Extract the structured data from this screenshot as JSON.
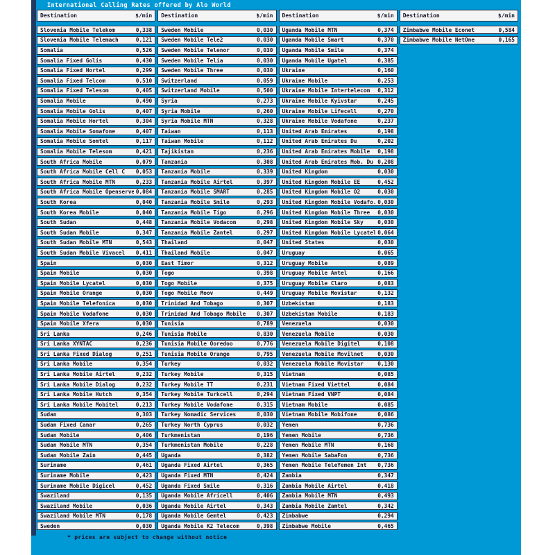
{
  "title": "International Calling Rates offered by Alo World",
  "footer_note": "* prices are subject to change without notice",
  "colors": {
    "panel_background": "#0099D6",
    "accent_bar": "#1F3A63",
    "cell_background": "#F4F4F4",
    "cell_border": "#2A2A3F",
    "text": "#14142C",
    "title_text": "#FFFFFF"
  },
  "table": {
    "header": {
      "destination": "Destination",
      "rate": "$/min"
    },
    "columns": [
      {
        "rows": [
          [
            "Slovenia Mobile Telekom",
            "0,338"
          ],
          [
            "Slovenia Mobile Telemach",
            "0,121"
          ],
          [
            "Somalia",
            "0,526"
          ],
          [
            "Somalia Fixed Golis",
            "0,430"
          ],
          [
            "Somalia Fixed Hortel",
            "0,299"
          ],
          [
            "Somalia Fixed Telcom",
            "0,510"
          ],
          [
            "Somalia Fixed Telesom",
            "0,405"
          ],
          [
            "Somalia Mobile",
            "0,490"
          ],
          [
            "Somalia Mobile Golis",
            "0,407"
          ],
          [
            "Somalia Mobile Hortel",
            "0,304"
          ],
          [
            "Somalia Mobile Somafone",
            "0,407"
          ],
          [
            "Somalia Mobile Somtel",
            "0,117"
          ],
          [
            "Somalia Mobile Telesom",
            "0,421"
          ],
          [
            "South Africa Mobile",
            "0,079"
          ],
          [
            "South Africa Mobile Cell C",
            "0,053"
          ],
          [
            "South Africa Mobile MTN",
            "0,233"
          ],
          [
            "South Africa Mobile Openserve",
            "0,084"
          ],
          [
            "South Korea",
            "0,040"
          ],
          [
            "South Korea Mobile",
            "0,040"
          ],
          [
            "South Sudan",
            "0,448"
          ],
          [
            "South Sudan Mobile",
            "0,347"
          ],
          [
            "South Sudan Mobile MTN",
            "0,543"
          ],
          [
            "South Sudan Mobile Vivacel",
            "0,411"
          ],
          [
            "Spain",
            "0,030"
          ],
          [
            "Spain Mobile",
            "0,030"
          ],
          [
            "Spain Mobile Lycatel",
            "0,030"
          ],
          [
            "Spain Mobile Orange",
            "0,030"
          ],
          [
            "Spain Mobile Telefonica",
            "0,030"
          ],
          [
            "Spain Mobile Vodafone",
            "0,030"
          ],
          [
            "Spain Mobile Xfera",
            "0,030"
          ],
          [
            "Sri Lanka",
            "0,246"
          ],
          [
            "Sri Lanka XYNTAC",
            "0,236"
          ],
          [
            "Sri Lanka Fixed Dialog",
            "0,251"
          ],
          [
            "Sri Lanka Mobile",
            "0,354"
          ],
          [
            "Sri Lanka Mobile Airtel",
            "0,232"
          ],
          [
            "Sri Lanka Mobile Dialog",
            "0,232"
          ],
          [
            "Sri Lanka Mobile Hutch",
            "0,354"
          ],
          [
            "Sri Lanka Mobile Mobitel",
            "0,213"
          ],
          [
            "Sudan",
            "0,303"
          ],
          [
            "Sudan Fixed Canar",
            "0,265"
          ],
          [
            "Sudan Mobile",
            "0,406"
          ],
          [
            "Sudan Mobile MTN",
            "0,354"
          ],
          [
            "Sudan Mobile Zain",
            "0,445"
          ],
          [
            "Suriname",
            "0,461"
          ],
          [
            "Suriname Mobile",
            "0,423"
          ],
          [
            "Suriname Mobile Digicel",
            "0,452"
          ],
          [
            "Swaziland",
            "0,135"
          ],
          [
            "Swaziland Mobile",
            "0,036"
          ],
          [
            "Swaziland Mobile MTN",
            "0,178"
          ],
          [
            "Sweden",
            "0,030"
          ]
        ]
      },
      {
        "rows": [
          [
            "Sweden Mobile",
            "0,030"
          ],
          [
            "Sweden Mobile Tele2",
            "0,030"
          ],
          [
            "Sweden Mobile Telenor",
            "0,030"
          ],
          [
            "Sweden Mobile Telia",
            "0,030"
          ],
          [
            "Sweden Mobile Three",
            "0,030"
          ],
          [
            "Switzerland",
            "0,059"
          ],
          [
            "Switzerland Mobile",
            "0,500"
          ],
          [
            "Syria",
            "0,273"
          ],
          [
            "Syria Mobile",
            "0,260"
          ],
          [
            "Syria Mobile MTN",
            "0,328"
          ],
          [
            "Taiwan",
            "0,113"
          ],
          [
            "Taiwan Mobile",
            "0,112"
          ],
          [
            "Tajikistan",
            "0,236"
          ],
          [
            "Tanzania",
            "0,308"
          ],
          [
            "Tanzania Mobile",
            "0,339"
          ],
          [
            "Tanzania Mobile Airtel",
            "0,397"
          ],
          [
            "Tanzania Mobile SMART",
            "0,285"
          ],
          [
            "Tanzania Mobile Smile",
            "0,293"
          ],
          [
            "Tanzania Mobile Tigo",
            "0,296"
          ],
          [
            "Tanzania Mobile Vodacom",
            "0,298"
          ],
          [
            "Tanzania Mobile Zantel",
            "0,297"
          ],
          [
            "Thailand",
            "0,047"
          ],
          [
            "Thailand Mobile",
            "0,047"
          ],
          [
            "East Timor",
            "0,312"
          ],
          [
            "Togo",
            "0,398"
          ],
          [
            "Togo Mobile",
            "0,375"
          ],
          [
            "Togo Mobile Moov",
            "0,449"
          ],
          [
            "Trinidad And Tobago",
            "0,307"
          ],
          [
            "Trinidad And Tobago Mobile",
            "0,307"
          ],
          [
            "Tunisia",
            "0,789"
          ],
          [
            "Tunisia Mobile",
            "0,830"
          ],
          [
            "Tunisia Mobile Ooredoo",
            "0,776"
          ],
          [
            "Tunisia Mobile Orange",
            "0,795"
          ],
          [
            "Turkey",
            "0,032"
          ],
          [
            "Turkey Mobile",
            "0,315"
          ],
          [
            "Turkey Mobile TT",
            "0,231"
          ],
          [
            "Turkey Mobile Turkcell",
            "0,294"
          ],
          [
            "Turkey Mobile Vodafone",
            "0,315"
          ],
          [
            "Turkey Nomadic Services",
            "0,030"
          ],
          [
            "Turkey North Cyprus",
            "0,032"
          ],
          [
            "Turkmenistan",
            "0,196"
          ],
          [
            "Turkmenistan Mobile",
            "0,228"
          ],
          [
            "Uganda",
            "0,382"
          ],
          [
            "Uganda Fixed Airtel",
            "0,365"
          ],
          [
            "Uganda Fixed MTN",
            "0,424"
          ],
          [
            "Uganda Fixed Smile",
            "0,316"
          ],
          [
            "Uganda Mobile Africell",
            "0,406"
          ],
          [
            "Uganda Mobile Airtel",
            "0,343"
          ],
          [
            "Uganda Mobile Gemtel",
            "0,423"
          ],
          [
            "Uganda Mobile K2 Telecom",
            "0,398"
          ]
        ]
      },
      {
        "rows": [
          [
            "Uganda Mobile MTN",
            "0,374"
          ],
          [
            "Uganda Mobile Smart",
            "0,370"
          ],
          [
            "Uganda Mobile Smile",
            "0,374"
          ],
          [
            "Uganda Mobile Ugatel",
            "0,385"
          ],
          [
            "Ukraine",
            "0,160"
          ],
          [
            "Ukraine Mobile",
            "0,253"
          ],
          [
            "Ukraine Mobile Intertelecom",
            "0,312"
          ],
          [
            "Ukraine Mobile Kyivstar",
            "0,245"
          ],
          [
            "Ukraine Mobile Lifecell",
            "0,270"
          ],
          [
            "Ukraine Mobile Vodafone",
            "0,237"
          ],
          [
            "United Arab Emirates",
            "0,198"
          ],
          [
            "United Arab Emirates Du",
            "0,202"
          ],
          [
            "United Arab Emirates Mobile",
            "0,198"
          ],
          [
            "United Arab Emirates Mob. Du",
            "0,208"
          ],
          [
            "United Kingdom",
            "0,030"
          ],
          [
            "United Kingdom Mobile EE",
            "0,452"
          ],
          [
            "United Kingdom Mobile O2",
            "0,030"
          ],
          [
            "United Kingdom Mobile Vodafo..",
            "0,030"
          ],
          [
            "United Kingdom Mobile Three",
            "0,030"
          ],
          [
            "United Kingdom Mobile Sky",
            "0,030"
          ],
          [
            "United Kingdom Mobile Lycatel",
            "0,064"
          ],
          [
            "United States",
            "0,030"
          ],
          [
            "Uruguay",
            "0,065"
          ],
          [
            "Uruguay Mobile",
            "0,089"
          ],
          [
            "Uruguay Mobile Antel",
            "0,166"
          ],
          [
            "Uruguay Mobile Claro",
            "0,083"
          ],
          [
            "Uruguay Mobile Movistar",
            "0,132"
          ],
          [
            "Uzbekistan",
            "0,183"
          ],
          [
            "Uzbekistan Mobile",
            "0,183"
          ],
          [
            "Venezuela",
            "0,030"
          ],
          [
            "Venezuela Mobile",
            "0,030"
          ],
          [
            "Venezuela Mobile Digitel",
            "0,108"
          ],
          [
            "Venezuela Mobile Movilnet",
            "0,030"
          ],
          [
            "Venezuela Mobile Movistar",
            "0,130"
          ],
          [
            "Vietnam",
            "0,085"
          ],
          [
            "Vietnam Fixed Viettel",
            "0,084"
          ],
          [
            "Vietnam Fixed VNPT",
            "0,084"
          ],
          [
            "Vietnam Mobile",
            "0,085"
          ],
          [
            "Vietnam Mobile Mobifone",
            "0,086"
          ],
          [
            "Yemen",
            "0,736"
          ],
          [
            "Yemen Mobile",
            "0,736"
          ],
          [
            "Yemen Mobile MTN",
            "0,168"
          ],
          [
            "Yemen Mobile SabaFon",
            "0,736"
          ],
          [
            "Yemen Mobile TeleYemen Int",
            "0,736"
          ],
          [
            "Zambia",
            "0,347"
          ],
          [
            "Zambia Mobile Airtel",
            "0,418"
          ],
          [
            "Zambia Mobile MTN",
            "0,493"
          ],
          [
            "Zambia Mobile Zamtel",
            "0,342"
          ],
          [
            "Zimbabwe",
            "0,294"
          ],
          [
            "Zimbabwe Mobile",
            "0,465"
          ]
        ]
      },
      {
        "rows": [
          [
            "Zimbabwe Mobile Econet",
            "0,584"
          ],
          [
            "Zimbabwe Mobile NetOne",
            "0,165"
          ]
        ]
      }
    ]
  }
}
